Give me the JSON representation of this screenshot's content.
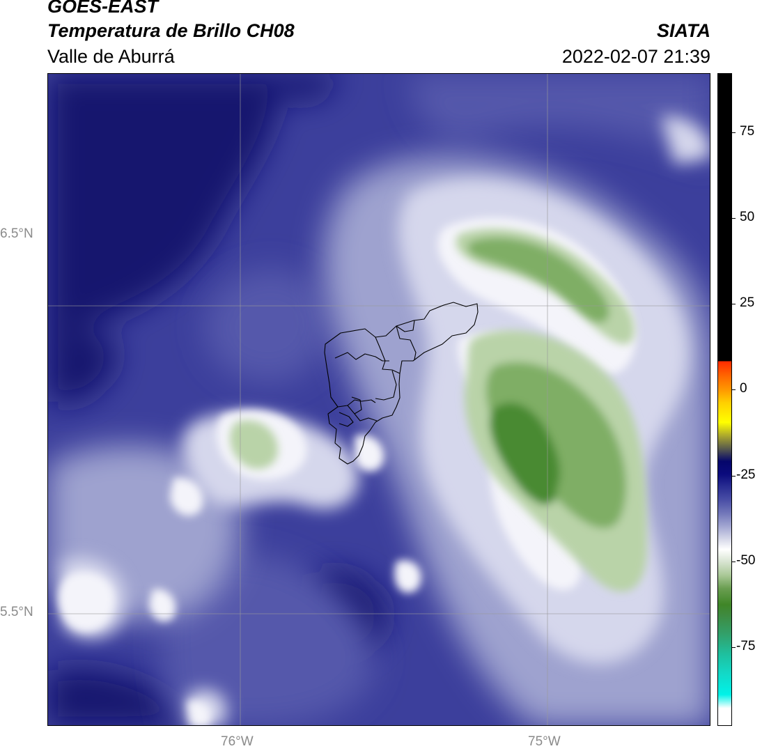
{
  "header": {
    "satellite": "GOES-EAST",
    "product": "Temperatura de Brillo CH08",
    "region": "Valle de Aburrá",
    "agency": "SIATA",
    "datetime": "2022-02-07 21:39"
  },
  "map": {
    "lat_labels": [
      "6.5°N",
      "5.5°N"
    ],
    "lon_labels": [
      "76°W",
      "75°W"
    ]
  },
  "colorbar": {
    "ticks": [
      "75",
      "50",
      "25",
      "0",
      "-25",
      "-50",
      "-75"
    ],
    "colors": {
      "black": "#000000",
      "red": "#ff2a00",
      "orange": "#ff9b00",
      "yellow": "#ffff00",
      "navy": "#05066b",
      "lavender": "#a3a7d2",
      "white": "#ffffff",
      "green": "#3f8627",
      "cyan": "#00f2e8"
    }
  },
  "field_colors": {
    "background": "#3c3f9c",
    "deep": "#16176e",
    "mid": "#5559ab",
    "light": "#9ea2cf",
    "pale": "#d5d7ec",
    "white": "#f4f4fa",
    "green_light": "#b9d3a8",
    "green_mid": "#7fae65",
    "green_dark": "#4a8a33",
    "boundary": "#000000",
    "grid": "#9a9a9a"
  }
}
